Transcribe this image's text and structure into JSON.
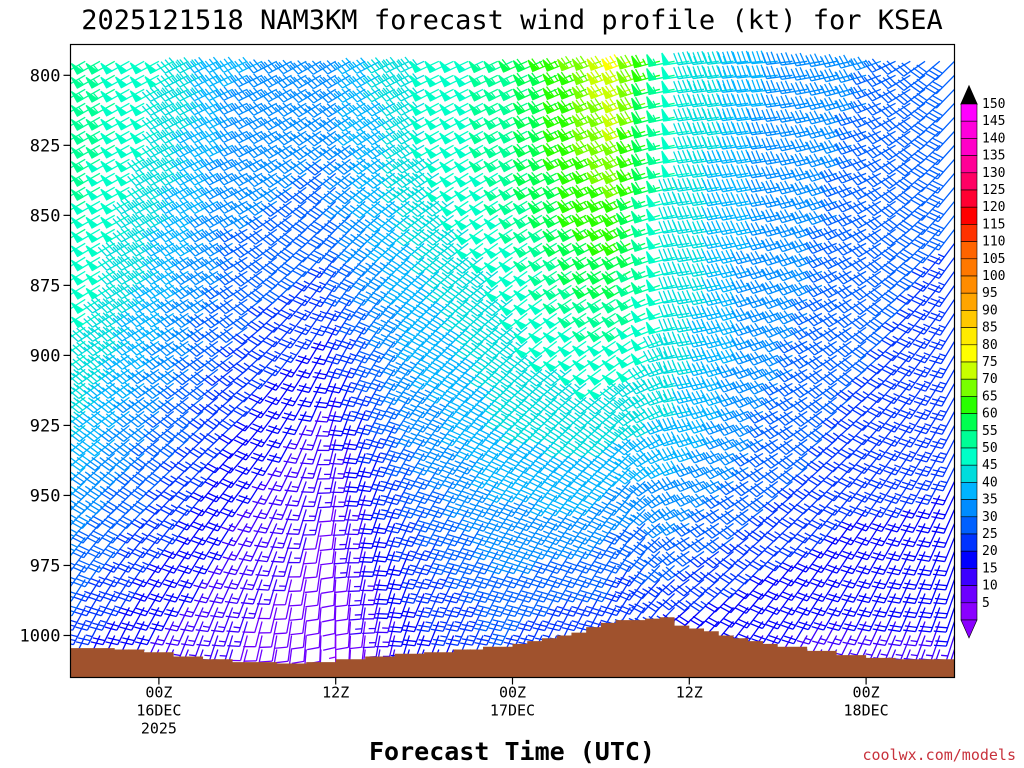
{
  "chart_data": {
    "type": "wind-barb-time-height",
    "title": "2025121518 NAM3KM forecast wind profile (kt) for KSEA",
    "xlabel": "Forecast Time (UTC)",
    "ylabel": "",
    "credit": "coolwx.com/models",
    "y_axis": {
      "unit": "hPa",
      "range": [
        1015,
        789
      ],
      "ticks": [
        800,
        825,
        850,
        875,
        900,
        925,
        950,
        975,
        1000
      ],
      "tick_labels": [
        "800",
        "825",
        "850",
        "875",
        "900",
        "925",
        "950",
        "975",
        "1000"
      ]
    },
    "x_axis": {
      "unit": "hours since 2025121518",
      "range": [
        0,
        60
      ],
      "ticks": [
        {
          "hour": 6,
          "lines": [
            "00Z",
            "16DEC",
            "2025"
          ]
        },
        {
          "hour": 18,
          "lines": [
            "12Z"
          ]
        },
        {
          "hour": 30,
          "lines": [
            "00Z",
            "17DEC"
          ]
        },
        {
          "hour": 42,
          "lines": [
            "12Z"
          ]
        },
        {
          "hour": 54,
          "lines": [
            "00Z",
            "18DEC"
          ]
        }
      ]
    },
    "colorbar": {
      "unit": "kt",
      "labels": [
        150,
        145,
        140,
        135,
        130,
        125,
        120,
        115,
        110,
        105,
        100,
        95,
        90,
        85,
        80,
        75,
        70,
        65,
        60,
        55,
        50,
        45,
        40,
        35,
        30,
        25,
        20,
        15,
        10,
        5
      ],
      "colors": {
        "5": "#8a00ff",
        "10": "#6c00ff",
        "15": "#3c00ff",
        "20": "#0000ff",
        "25": "#0033ff",
        "30": "#0060ff",
        "35": "#008cff",
        "40": "#00b4ff",
        "45": "#00dcdc",
        "50": "#00ffc8",
        "55": "#00ff96",
        "60": "#00ff50",
        "65": "#28ff00",
        "70": "#78ff00",
        "75": "#c8ff00",
        "80": "#ffff00",
        "85": "#ffeb00",
        "90": "#ffc800",
        "95": "#ffa500",
        "100": "#ff8c00",
        "105": "#ff7800",
        "110": "#ff6400",
        "115": "#ff3200",
        "120": "#ff0000",
        "125": "#ff0032",
        "130": "#ff0064",
        "135": "#ff0096",
        "140": "#ff00c8",
        "145": "#ff00dc",
        "150": "#ff00ff"
      }
    },
    "terrain_surface_hPa": [
      {
        "hour": 0,
        "p": 1004.5
      },
      {
        "hour": 2,
        "p": 1004.5
      },
      {
        "hour": 3,
        "p": 1005
      },
      {
        "hour": 5,
        "p": 1006
      },
      {
        "hour": 7,
        "p": 1007.5
      },
      {
        "hour": 9,
        "p": 1008.5
      },
      {
        "hour": 11,
        "p": 1009.5
      },
      {
        "hour": 14,
        "p": 1010
      },
      {
        "hour": 16,
        "p": 1009.5
      },
      {
        "hour": 18,
        "p": 1008.5
      },
      {
        "hour": 20,
        "p": 1007.5
      },
      {
        "hour": 22,
        "p": 1006.5
      },
      {
        "hour": 24,
        "p": 1006
      },
      {
        "hour": 26,
        "p": 1005
      },
      {
        "hour": 28,
        "p": 1004
      },
      {
        "hour": 30,
        "p": 1003
      },
      {
        "hour": 31,
        "p": 1002
      },
      {
        "hour": 32,
        "p": 1001
      },
      {
        "hour": 33,
        "p": 1000
      },
      {
        "hour": 34,
        "p": 999
      },
      {
        "hour": 35,
        "p": 997
      },
      {
        "hour": 36,
        "p": 995.5
      },
      {
        "hour": 37,
        "p": 994.5
      },
      {
        "hour": 38,
        "p": 994.5
      },
      {
        "hour": 39,
        "p": 994
      },
      {
        "hour": 40,
        "p": 993.5
      },
      {
        "hour": 41,
        "p": 996.5
      },
      {
        "hour": 42,
        "p": 997.5
      },
      {
        "hour": 43,
        "p": 998.5
      },
      {
        "hour": 44,
        "p": 1000
      },
      {
        "hour": 45,
        "p": 1001
      },
      {
        "hour": 46,
        "p": 1002
      },
      {
        "hour": 47,
        "p": 1003
      },
      {
        "hour": 48,
        "p": 1004
      },
      {
        "hour": 50,
        "p": 1005.5
      },
      {
        "hour": 52,
        "p": 1007
      },
      {
        "hour": 54,
        "p": 1008
      },
      {
        "hour": 56,
        "p": 1008.5
      },
      {
        "hour": 58,
        "p": 1008.5
      },
      {
        "hour": 60,
        "p": 1008
      }
    ],
    "wind_profiles": [
      {
        "hour": 0,
        "levels": [
          {
            "p": 795,
            "dir": 240,
            "spd": 57
          },
          {
            "p": 825,
            "dir": 240,
            "spd": 57
          },
          {
            "p": 850,
            "dir": 240,
            "spd": 55
          },
          {
            "p": 875,
            "dir": 238,
            "spd": 53
          },
          {
            "p": 900,
            "dir": 235,
            "spd": 50
          },
          {
            "p": 925,
            "dir": 232,
            "spd": 45
          },
          {
            "p": 950,
            "dir": 225,
            "spd": 38
          },
          {
            "p": 975,
            "dir": 215,
            "spd": 32
          },
          {
            "p": 1000,
            "dir": 205,
            "spd": 25
          }
        ]
      },
      {
        "hour": 6,
        "levels": [
          {
            "p": 795,
            "dir": 242,
            "spd": 50
          },
          {
            "p": 825,
            "dir": 242,
            "spd": 48
          },
          {
            "p": 850,
            "dir": 242,
            "spd": 45
          },
          {
            "p": 875,
            "dir": 240,
            "spd": 42
          },
          {
            "p": 900,
            "dir": 238,
            "spd": 38
          },
          {
            "p": 925,
            "dir": 232,
            "spd": 33
          },
          {
            "p": 950,
            "dir": 225,
            "spd": 28
          },
          {
            "p": 975,
            "dir": 215,
            "spd": 22
          },
          {
            "p": 1000,
            "dir": 205,
            "spd": 17
          }
        ]
      },
      {
        "hour": 12,
        "levels": [
          {
            "p": 795,
            "dir": 245,
            "spd": 38
          },
          {
            "p": 825,
            "dir": 245,
            "spd": 36
          },
          {
            "p": 850,
            "dir": 242,
            "spd": 33
          },
          {
            "p": 875,
            "dir": 238,
            "spd": 30
          },
          {
            "p": 900,
            "dir": 232,
            "spd": 26
          },
          {
            "p": 925,
            "dir": 225,
            "spd": 22
          },
          {
            "p": 950,
            "dir": 215,
            "spd": 18
          },
          {
            "p": 975,
            "dir": 205,
            "spd": 15
          },
          {
            "p": 1000,
            "dir": 195,
            "spd": 12
          }
        ]
      },
      {
        "hour": 18,
        "levels": [
          {
            "p": 795,
            "dir": 240,
            "spd": 35
          },
          {
            "p": 825,
            "dir": 235,
            "spd": 33
          },
          {
            "p": 850,
            "dir": 225,
            "spd": 30
          },
          {
            "p": 875,
            "dir": 215,
            "spd": 25
          },
          {
            "p": 900,
            "dir": 205,
            "spd": 20
          },
          {
            "p": 925,
            "dir": 195,
            "spd": 15
          },
          {
            "p": 950,
            "dir": 190,
            "spd": 12
          },
          {
            "p": 975,
            "dir": 185,
            "spd": 10
          },
          {
            "p": 1000,
            "dir": 180,
            "spd": 7
          }
        ]
      },
      {
        "hour": 24,
        "levels": [
          {
            "p": 795,
            "dir": 245,
            "spd": 47
          },
          {
            "p": 825,
            "dir": 240,
            "spd": 46
          },
          {
            "p": 850,
            "dir": 232,
            "spd": 44
          },
          {
            "p": 875,
            "dir": 225,
            "spd": 40
          },
          {
            "p": 900,
            "dir": 220,
            "spd": 37
          },
          {
            "p": 925,
            "dir": 215,
            "spd": 33
          },
          {
            "p": 950,
            "dir": 210,
            "spd": 28
          },
          {
            "p": 975,
            "dir": 205,
            "spd": 24
          },
          {
            "p": 1000,
            "dir": 200,
            "spd": 20
          }
        ]
      },
      {
        "hour": 30,
        "levels": [
          {
            "p": 795,
            "dir": 245,
            "spd": 55
          },
          {
            "p": 825,
            "dir": 242,
            "spd": 55
          },
          {
            "p": 850,
            "dir": 238,
            "spd": 52
          },
          {
            "p": 875,
            "dir": 232,
            "spd": 48
          },
          {
            "p": 900,
            "dir": 228,
            "spd": 45
          },
          {
            "p": 925,
            "dir": 222,
            "spd": 42
          },
          {
            "p": 950,
            "dir": 215,
            "spd": 37
          },
          {
            "p": 975,
            "dir": 210,
            "spd": 32
          },
          {
            "p": 1000,
            "dir": 205,
            "spd": 27
          }
        ]
      },
      {
        "hour": 36,
        "levels": [
          {
            "p": 795,
            "dir": 250,
            "spd": 70
          },
          {
            "p": 825,
            "dir": 248,
            "spd": 68
          },
          {
            "p": 850,
            "dir": 245,
            "spd": 65
          },
          {
            "p": 875,
            "dir": 240,
            "spd": 58
          },
          {
            "p": 900,
            "dir": 235,
            "spd": 50
          },
          {
            "p": 925,
            "dir": 228,
            "spd": 45
          },
          {
            "p": 950,
            "dir": 220,
            "spd": 38
          },
          {
            "p": 975,
            "dir": 212,
            "spd": 30
          },
          {
            "p": 1000,
            "dir": 205,
            "spd": 20
          }
        ]
      },
      {
        "hour": 38,
        "levels": [
          {
            "p": 795,
            "dir": 250,
            "spd": 78
          },
          {
            "p": 825,
            "dir": 248,
            "spd": 72
          },
          {
            "p": 850,
            "dir": 245,
            "spd": 66
          },
          {
            "p": 875,
            "dir": 240,
            "spd": 58
          },
          {
            "p": 900,
            "dir": 235,
            "spd": 50
          },
          {
            "p": 925,
            "dir": 228,
            "spd": 43
          },
          {
            "p": 950,
            "dir": 220,
            "spd": 35
          },
          {
            "p": 975,
            "dir": 212,
            "spd": 27
          }
        ]
      },
      {
        "hour": 42,
        "levels": [
          {
            "p": 795,
            "dir": 262,
            "spd": 48
          },
          {
            "p": 825,
            "dir": 262,
            "spd": 48
          },
          {
            "p": 850,
            "dir": 262,
            "spd": 47
          },
          {
            "p": 875,
            "dir": 262,
            "spd": 47
          },
          {
            "p": 900,
            "dir": 262,
            "spd": 45
          },
          {
            "p": 925,
            "dir": 258,
            "spd": 42
          },
          {
            "p": 950,
            "dir": 248,
            "spd": 36
          },
          {
            "p": 975,
            "dir": 235,
            "spd": 28
          },
          {
            "p": 1000,
            "dir": 225,
            "spd": 18
          }
        ]
      },
      {
        "hour": 48,
        "levels": [
          {
            "p": 795,
            "dir": 265,
            "spd": 38
          },
          {
            "p": 825,
            "dir": 262,
            "spd": 37
          },
          {
            "p": 850,
            "dir": 258,
            "spd": 36
          },
          {
            "p": 875,
            "dir": 252,
            "spd": 35
          },
          {
            "p": 900,
            "dir": 248,
            "spd": 34
          },
          {
            "p": 925,
            "dir": 242,
            "spd": 32
          },
          {
            "p": 950,
            "dir": 232,
            "spd": 28
          },
          {
            "p": 975,
            "dir": 222,
            "spd": 22
          },
          {
            "p": 1000,
            "dir": 212,
            "spd": 17
          }
        ]
      },
      {
        "hour": 54,
        "levels": [
          {
            "p": 795,
            "dir": 255,
            "spd": 33
          },
          {
            "p": 825,
            "dir": 250,
            "spd": 32
          },
          {
            "p": 850,
            "dir": 245,
            "spd": 31
          },
          {
            "p": 875,
            "dir": 240,
            "spd": 30
          },
          {
            "p": 900,
            "dir": 232,
            "spd": 28
          },
          {
            "p": 925,
            "dir": 225,
            "spd": 26
          },
          {
            "p": 950,
            "dir": 218,
            "spd": 23
          },
          {
            "p": 975,
            "dir": 210,
            "spd": 20
          },
          {
            "p": 1000,
            "dir": 205,
            "spd": 16
          }
        ]
      },
      {
        "hour": 60,
        "levels": [
          {
            "p": 795,
            "dir": 225,
            "spd": 30
          },
          {
            "p": 825,
            "dir": 222,
            "spd": 30
          },
          {
            "p": 850,
            "dir": 218,
            "spd": 28
          },
          {
            "p": 875,
            "dir": 215,
            "spd": 26
          },
          {
            "p": 900,
            "dir": 210,
            "spd": 25
          },
          {
            "p": 925,
            "dir": 208,
            "spd": 24
          },
          {
            "p": 950,
            "dir": 205,
            "spd": 22
          },
          {
            "p": 975,
            "dir": 200,
            "spd": 20
          },
          {
            "p": 1000,
            "dir": 198,
            "spd": 17
          }
        ]
      }
    ],
    "level_stride_hPa": 5,
    "time_stride_hours": 1,
    "terrain_color": "#a0522d",
    "grid": false,
    "legend": "right"
  }
}
